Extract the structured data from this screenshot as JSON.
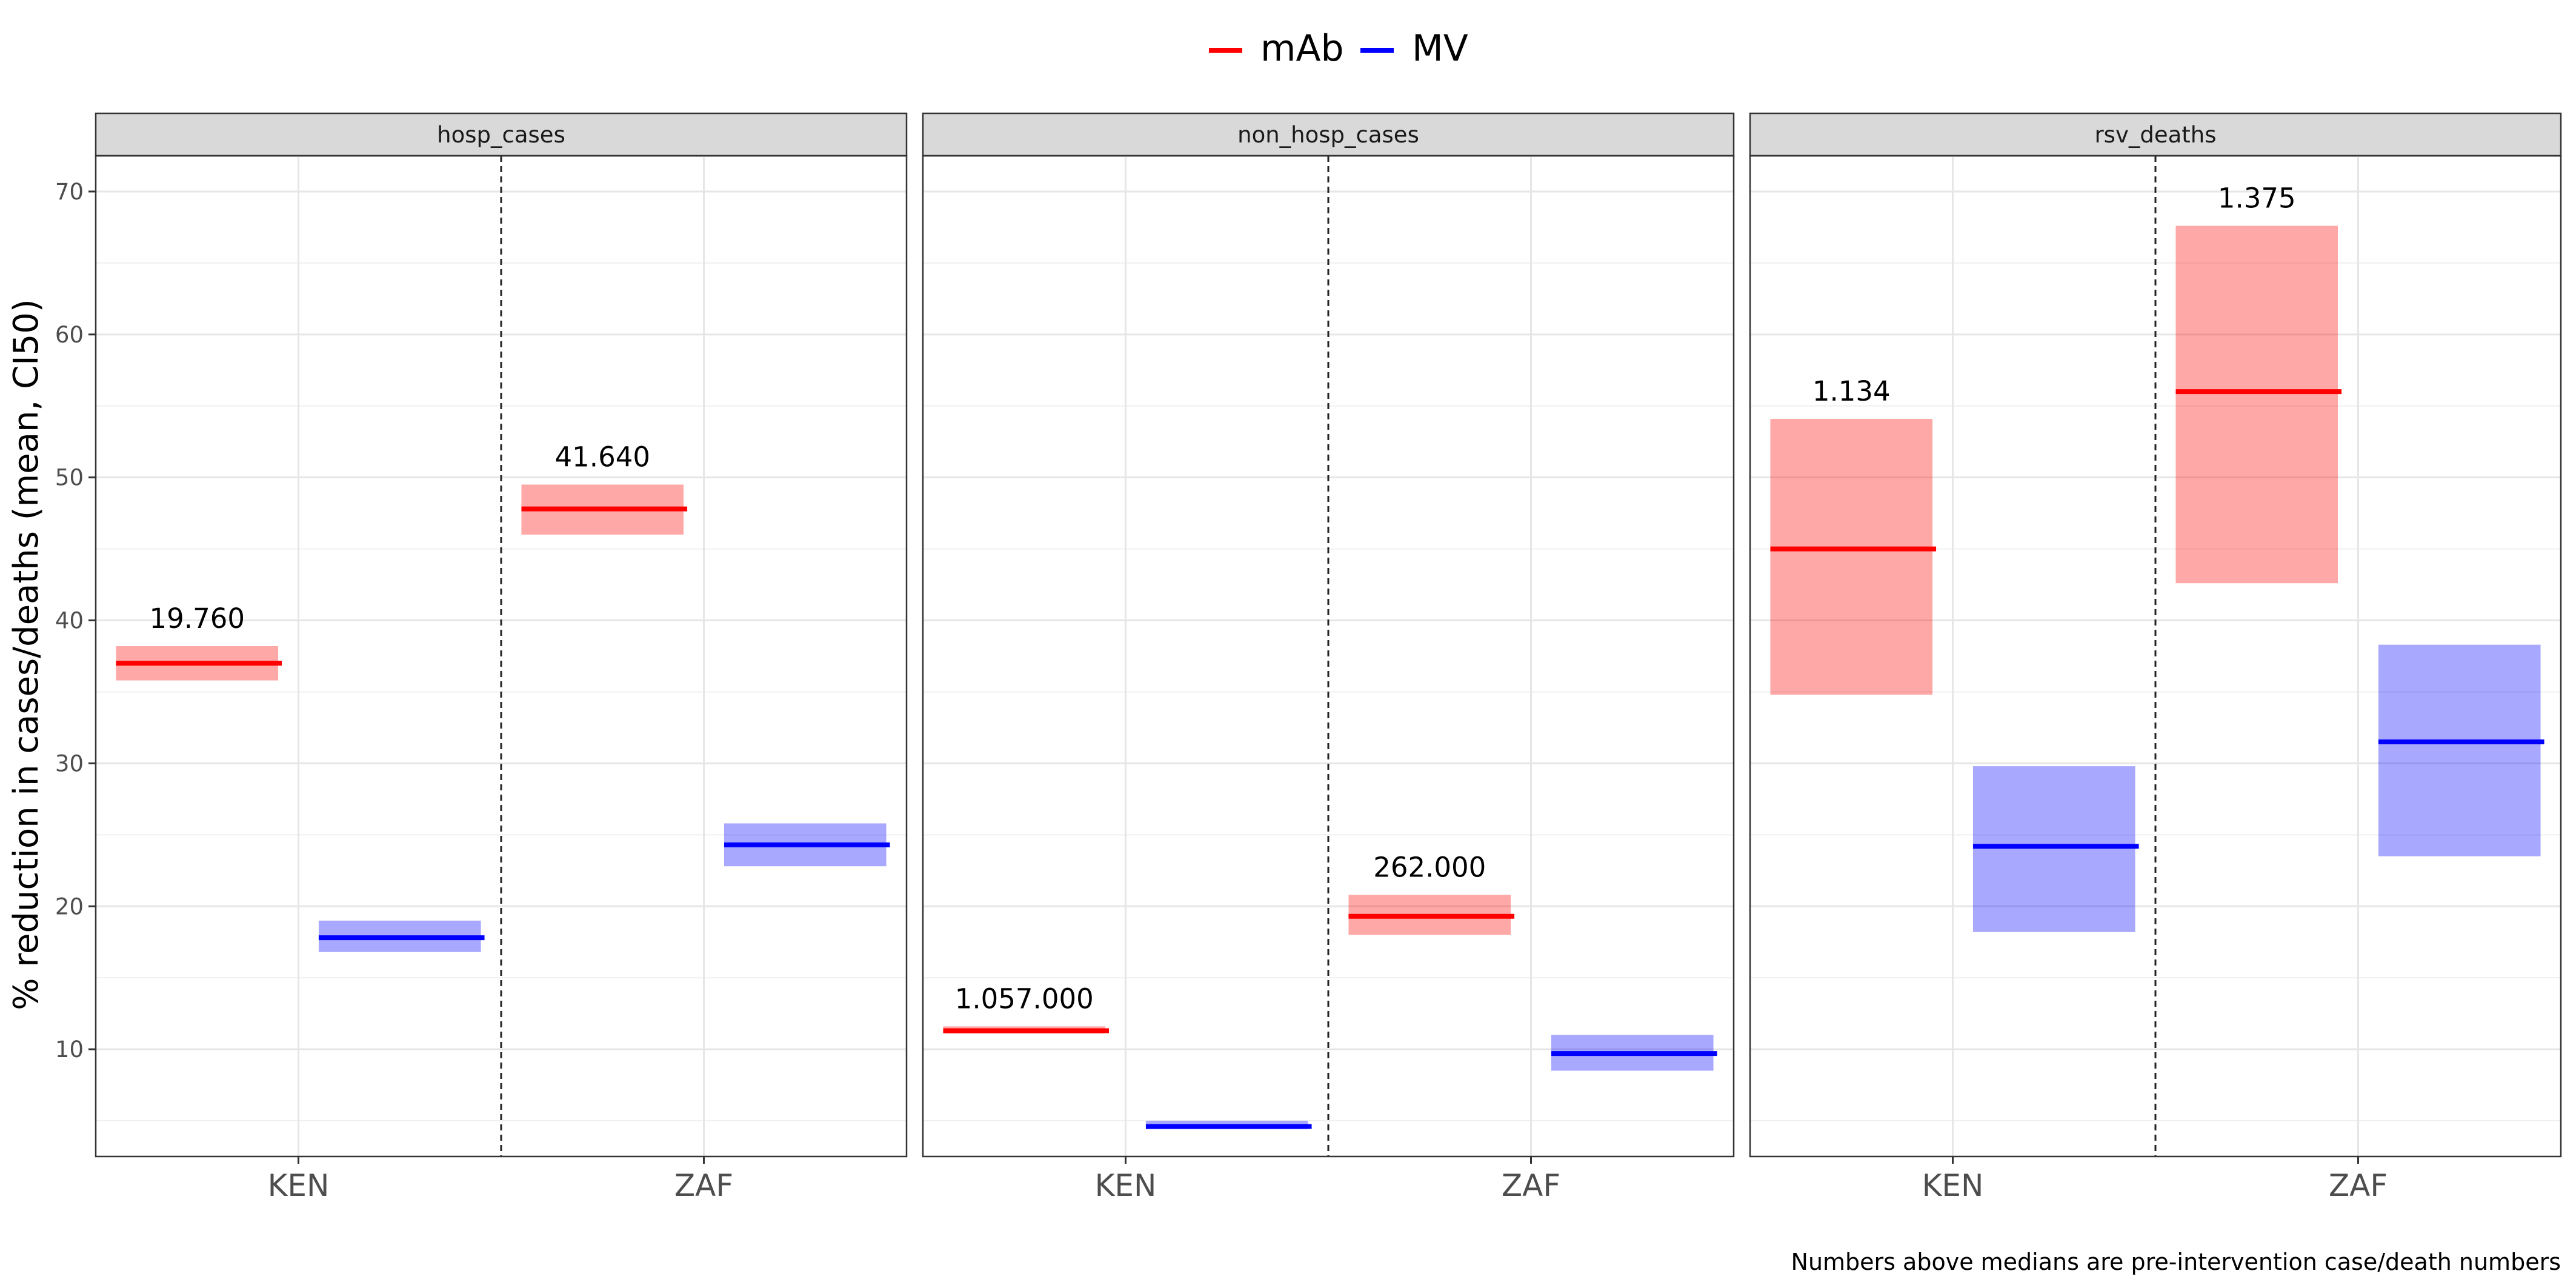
{
  "chart_data": {
    "type": "crossbar",
    "ylabel": "% reduction in cases/deaths (mean, CI50)",
    "caption": "Numbers above medians are pre-intervention case/death numbers",
    "ylim": [
      2.5,
      72.5
    ],
    "yticks": [
      10,
      20,
      30,
      40,
      50,
      60,
      70
    ],
    "grid": true,
    "legend": {
      "position": "top",
      "items": [
        {
          "label": "mAb",
          "color": "#ff0000"
        },
        {
          "label": "MV",
          "color": "#0000ff"
        }
      ]
    },
    "categories": [
      "KEN",
      "ZAF"
    ],
    "panels": [
      {
        "title": "hosp_cases",
        "points": [
          {
            "country": "KEN",
            "series": "mAb",
            "mean": 37.0,
            "low": 35.8,
            "high": 38.2,
            "label": "19.760"
          },
          {
            "country": "KEN",
            "series": "MV",
            "mean": 17.8,
            "low": 16.8,
            "high": 19.0,
            "label": ""
          },
          {
            "country": "ZAF",
            "series": "mAb",
            "mean": 47.8,
            "low": 46.0,
            "high": 49.5,
            "label": "41.640"
          },
          {
            "country": "ZAF",
            "series": "MV",
            "mean": 24.3,
            "low": 22.8,
            "high": 25.8,
            "label": ""
          }
        ]
      },
      {
        "title": "non_hosp_cases",
        "points": [
          {
            "country": "KEN",
            "series": "mAb",
            "mean": 11.3,
            "low": 11.1,
            "high": 11.6,
            "label": "1.057.000"
          },
          {
            "country": "KEN",
            "series": "MV",
            "mean": 4.6,
            "low": 4.4,
            "high": 5.0,
            "label": ""
          },
          {
            "country": "ZAF",
            "series": "mAb",
            "mean": 19.3,
            "low": 18.0,
            "high": 20.8,
            "label": "262.000"
          },
          {
            "country": "ZAF",
            "series": "MV",
            "mean": 9.7,
            "low": 8.5,
            "high": 11.0,
            "label": ""
          }
        ]
      },
      {
        "title": "rsv_deaths",
        "points": [
          {
            "country": "KEN",
            "series": "mAb",
            "mean": 45.0,
            "low": 34.8,
            "high": 54.1,
            "label": "1.134"
          },
          {
            "country": "KEN",
            "series": "MV",
            "mean": 24.2,
            "low": 18.2,
            "high": 29.8,
            "label": ""
          },
          {
            "country": "ZAF",
            "series": "mAb",
            "mean": 56.0,
            "low": 42.6,
            "high": 67.6,
            "label": "1.375"
          },
          {
            "country": "ZAF",
            "series": "MV",
            "mean": 31.5,
            "low": 23.5,
            "high": 38.3,
            "label": ""
          }
        ]
      }
    ]
  }
}
